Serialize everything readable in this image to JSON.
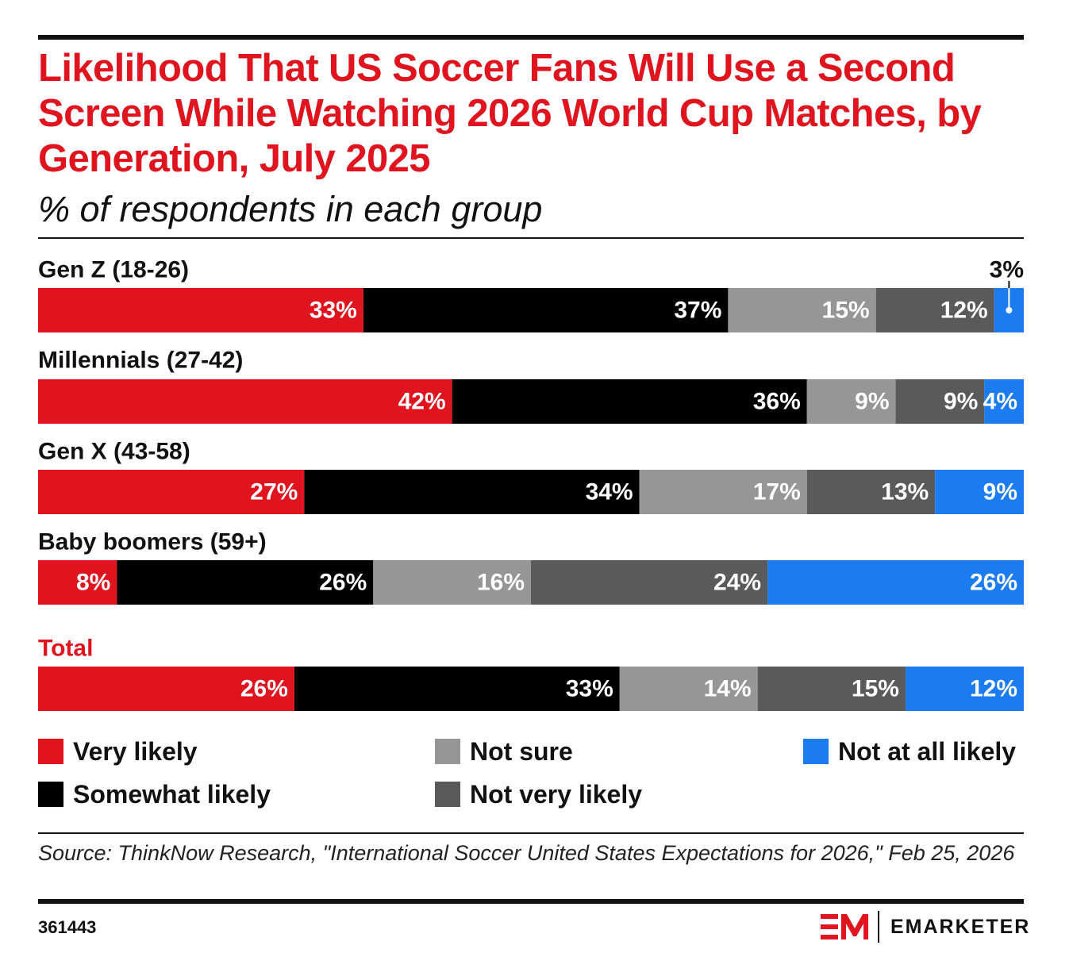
{
  "header": {
    "title": "Likelihood That US Soccer Fans Will Use a Second Screen While Watching 2026 World Cup Matches, by Generation, July 2025",
    "subtitle": "% of respondents in each group"
  },
  "chart_data": {
    "type": "bar",
    "orientation": "horizontal",
    "stacked": "100%",
    "title": "Likelihood That US Soccer Fans Will Use a Second Screen While Watching 2026 World Cup Matches, by Generation, July 2025",
    "subtitle": "% of respondents in each group",
    "categories": [
      "Gen Z (18-26)",
      "Millennials (27-42)",
      "Gen X (43-58)",
      "Baby boomers (59+)",
      "Total"
    ],
    "series": [
      {
        "name": "Very likely",
        "color": "#e0141e",
        "values": [
          33,
          42,
          27,
          8,
          26
        ]
      },
      {
        "name": "Somewhat likely",
        "color": "#000000",
        "values": [
          37,
          36,
          34,
          26,
          33
        ]
      },
      {
        "name": "Not sure",
        "color": "#969696",
        "values": [
          15,
          9,
          17,
          16,
          14
        ]
      },
      {
        "name": "Not very likely",
        "color": "#5a5a5a",
        "values": [
          12,
          9,
          13,
          24,
          15
        ]
      },
      {
        "name": "Not at all likely",
        "color": "#1a7cf0",
        "values": [
          3,
          4,
          9,
          26,
          12
        ]
      }
    ],
    "value_suffix": "%",
    "highlight_category": "Total",
    "highlight_color": "#e0141e",
    "legend_position": "bottom",
    "grid": false
  },
  "footer": {
    "source": "Source: ThinkNow Research, \"International Soccer United States Expectations for 2026,\" Feb 25, 2026",
    "chart_id": "361443",
    "brand": "EMARKETER",
    "brand_mark": "EM"
  },
  "colors": {
    "accent": "#e0141e",
    "text": "#111111"
  }
}
